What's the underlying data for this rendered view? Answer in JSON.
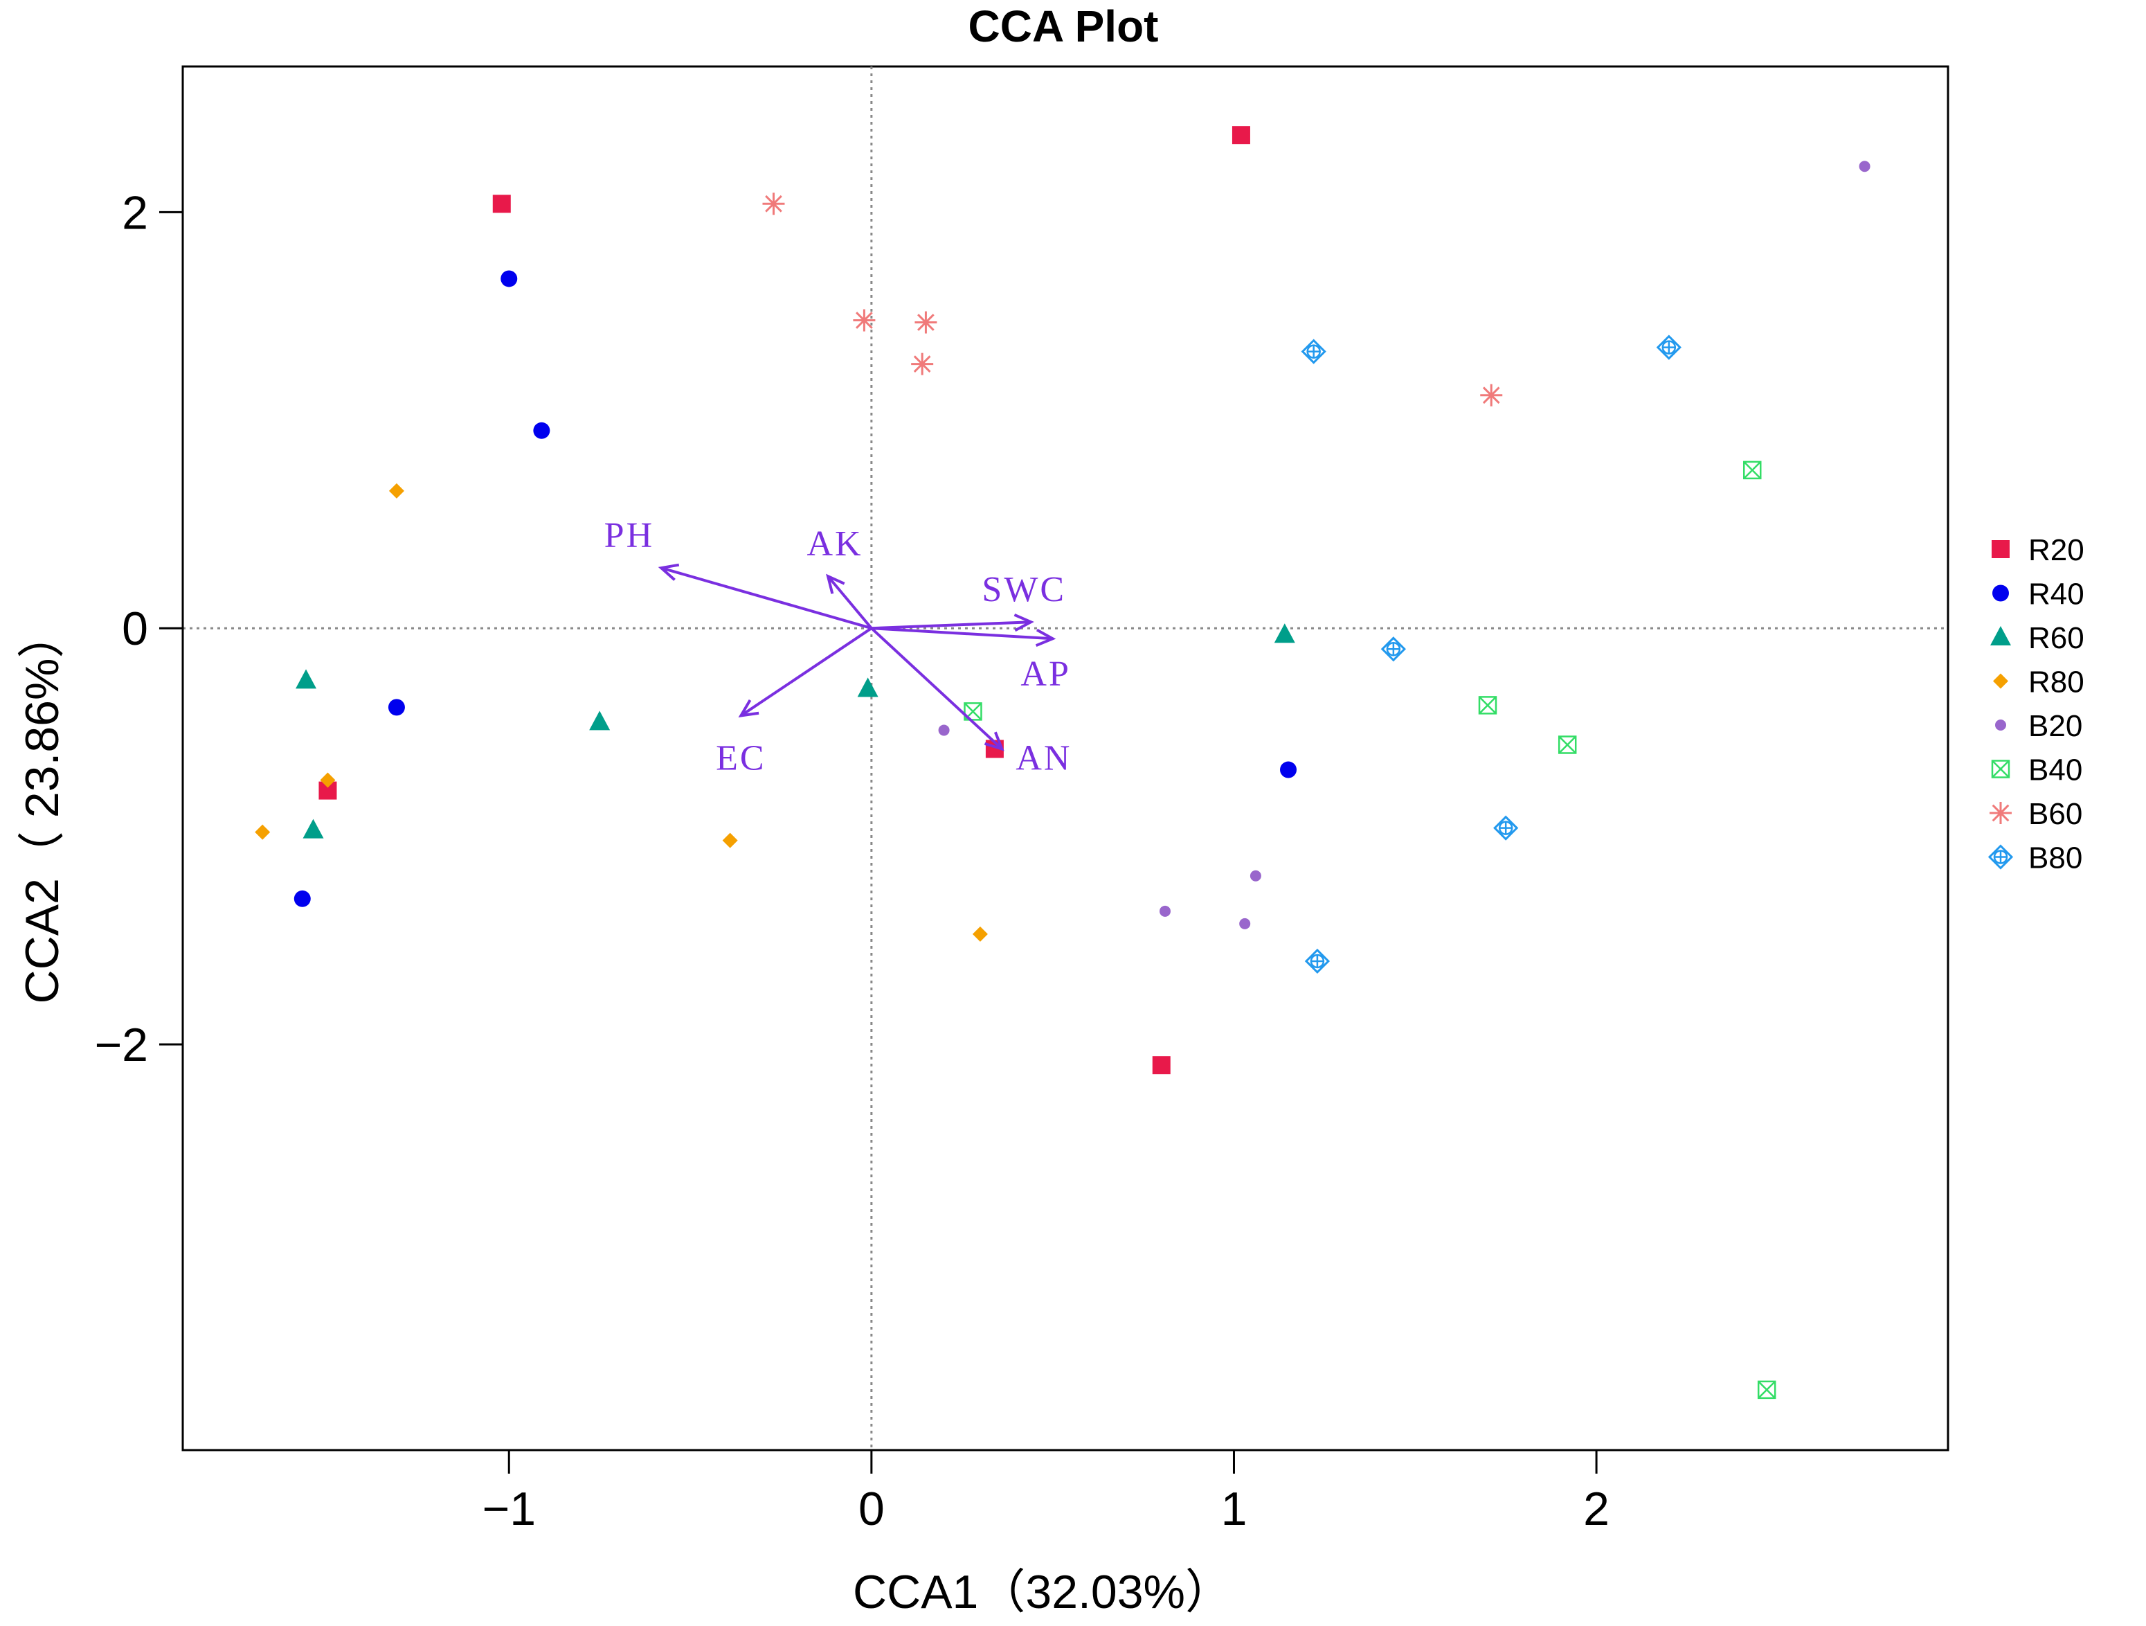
{
  "chart_data": {
    "type": "scatter",
    "title": "CCA Plot",
    "xlabel": "CCA1（32.03%）",
    "ylabel": "CCA2（ 23.86%）",
    "xlim": [
      -1.9,
      2.97
    ],
    "ylim": [
      -3.95,
      2.7
    ],
    "xticks": [
      -1,
      0,
      1,
      2
    ],
    "yticks": [
      -2,
      0,
      2
    ],
    "xtick_labels": [
      "−1",
      "0",
      "1",
      "2"
    ],
    "ytick_labels": [
      "−2",
      "0",
      "2"
    ],
    "reference_lines": {
      "x": 0,
      "y": 0,
      "style": "dotted",
      "color": "#888888"
    },
    "series": [
      {
        "name": "R20",
        "marker": "square",
        "color": "#e8194a",
        "points": [
          [
            -1.02,
            2.04
          ],
          [
            1.02,
            2.37
          ],
          [
            -1.5,
            -0.78
          ],
          [
            0.34,
            -0.58
          ],
          [
            0.8,
            -2.1
          ]
        ]
      },
      {
        "name": "R40",
        "marker": "circle",
        "color": "#0000ee",
        "points": [
          [
            -1.0,
            1.68
          ],
          [
            -0.91,
            0.95
          ],
          [
            -1.31,
            -0.38
          ],
          [
            -1.57,
            -1.3
          ],
          [
            1.15,
            -0.68
          ]
        ]
      },
      {
        "name": "R60",
        "marker": "triangle",
        "color": "#009e8a",
        "points": [
          [
            -1.56,
            -0.25
          ],
          [
            -0.75,
            -0.45
          ],
          [
            -0.01,
            -0.29
          ],
          [
            1.14,
            -0.03
          ],
          [
            -1.54,
            -0.97
          ]
        ]
      },
      {
        "name": "R80",
        "marker": "diamond",
        "color": "#f5a000",
        "points": [
          [
            -1.31,
            0.66
          ],
          [
            -1.5,
            -0.73
          ],
          [
            -1.68,
            -0.98
          ],
          [
            -0.39,
            -1.02
          ],
          [
            0.3,
            -1.47
          ]
        ]
      },
      {
        "name": "B20",
        "marker": "small-circle",
        "color": "#9966cc",
        "points": [
          [
            2.74,
            2.22
          ],
          [
            0.2,
            -0.49
          ],
          [
            1.06,
            -1.19
          ],
          [
            0.81,
            -1.36
          ],
          [
            1.03,
            -1.42
          ]
        ]
      },
      {
        "name": "B40",
        "marker": "boxed-x",
        "color": "#33dd66",
        "points": [
          [
            2.43,
            0.76
          ],
          [
            1.7,
            -0.37
          ],
          [
            1.92,
            -0.56
          ],
          [
            0.28,
            -0.4
          ],
          [
            2.47,
            -3.66
          ]
        ]
      },
      {
        "name": "B60",
        "marker": "asterisk",
        "color": "#f07a7a",
        "points": [
          [
            -0.27,
            2.04
          ],
          [
            -0.02,
            1.48
          ],
          [
            0.15,
            1.47
          ],
          [
            0.14,
            1.27
          ],
          [
            1.71,
            1.12
          ]
        ]
      },
      {
        "name": "B80",
        "marker": "circled-cross",
        "color": "#2299ee",
        "points": [
          [
            1.22,
            1.33
          ],
          [
            2.2,
            1.35
          ],
          [
            1.44,
            -0.1
          ],
          [
            1.75,
            -0.96
          ],
          [
            1.23,
            -1.6
          ]
        ]
      }
    ],
    "arrows": [
      {
        "label": "PH",
        "end": [
          -0.58,
          0.29
        ]
      },
      {
        "label": "AK",
        "end": [
          -0.12,
          0.25
        ]
      },
      {
        "label": "SWC",
        "end": [
          0.44,
          0.03
        ]
      },
      {
        "label": "AP",
        "end": [
          0.5,
          -0.05
        ]
      },
      {
        "label": "AN",
        "end": [
          0.36,
          -0.58
        ]
      },
      {
        "label": "EC",
        "end": [
          -0.36,
          -0.42
        ]
      }
    ],
    "arrow_color": "#7a2fe0",
    "legend_position": "right",
    "legend": [
      "R20",
      "R40",
      "R60",
      "R80",
      "B20",
      "B40",
      "B60",
      "B80"
    ]
  }
}
